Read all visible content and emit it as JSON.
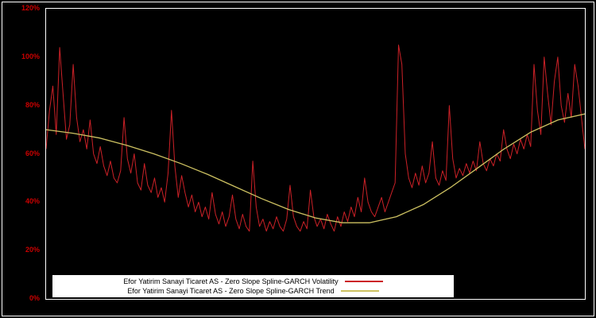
{
  "window": {
    "background": "#000000",
    "frame_color": "#ffffff"
  },
  "legend": {
    "items": [
      {
        "label": "Efor Yatirim Sanayi Ticaret AS - Zero Slope Spline-GARCH Volatility",
        "color": "#cc2127"
      },
      {
        "label": "Efor Yatirim Sanayi Ticaret AS - Zero Slope Spline-GARCH Trend",
        "color": "#cdc161"
      }
    ]
  },
  "chart_data": {
    "type": "line",
    "title": "",
    "xlabel": "",
    "ylabel": "",
    "ylim": [
      0,
      120
    ],
    "grid": false,
    "background": "#000000",
    "axis_color": "#ffffff",
    "tick_label_color": "#cc0000",
    "legend_position": "bottom-center",
    "yticks": [
      {
        "value": 0,
        "label": "0%"
      },
      {
        "value": 20,
        "label": "20%"
      },
      {
        "value": 40,
        "label": "40%"
      },
      {
        "value": 60,
        "label": "60%"
      },
      {
        "value": 80,
        "label": "80%"
      },
      {
        "value": 100,
        "label": "100%"
      },
      {
        "value": 120,
        "label": "120%"
      }
    ],
    "series": [
      {
        "name": "Efor Yatirim Sanayi Ticaret AS - Zero Slope Spline-GARCH Volatility",
        "color": "#cc2127",
        "width": 1,
        "data_name": "volatility-line",
        "values": [
          62,
          78,
          88,
          68,
          104,
          85,
          66,
          72,
          97,
          75,
          65,
          70,
          62,
          74,
          60,
          56,
          63,
          55,
          51,
          57,
          50,
          48,
          53,
          75,
          58,
          52,
          60,
          48,
          45,
          56,
          47,
          44,
          50,
          42,
          46,
          40,
          52,
          78,
          55,
          42,
          51,
          44,
          38,
          43,
          36,
          40,
          34,
          38,
          33,
          44,
          35,
          31,
          36,
          30,
          34,
          43,
          33,
          29,
          35,
          30,
          28,
          57,
          38,
          30,
          33,
          28,
          32,
          29,
          34,
          30,
          28,
          33,
          47,
          34,
          30,
          28,
          32,
          29,
          45,
          34,
          30,
          33,
          29,
          35,
          31,
          28,
          34,
          30,
          36,
          32,
          38,
          34,
          42,
          36,
          50,
          40,
          36,
          34,
          38,
          42,
          36,
          40,
          44,
          48,
          105,
          97,
          60,
          50,
          46,
          52,
          47,
          55,
          48,
          52,
          65,
          50,
          47,
          53,
          49,
          80,
          58,
          50,
          54,
          51,
          56,
          52,
          57,
          53,
          65,
          56,
          53,
          58,
          55,
          60,
          57,
          70,
          62,
          58,
          64,
          60,
          66,
          62,
          68,
          63,
          97,
          78,
          68,
          100,
          85,
          72,
          90,
          100,
          80,
          73,
          85,
          75,
          97,
          88,
          75,
          62
        ]
      },
      {
        "name": "Efor Yatirim Sanayi Ticaret AS - Zero Slope Spline-GARCH Trend",
        "color": "#cdc161",
        "width": 1.3,
        "data_name": "trend-line",
        "values": [
          70,
          68.5,
          66.5,
          63.5,
          60,
          56,
          51.5,
          46.5,
          41.5,
          37,
          33.5,
          31.5,
          31.5,
          34,
          39,
          46,
          54,
          62,
          69,
          74,
          76.5
        ]
      }
    ]
  }
}
